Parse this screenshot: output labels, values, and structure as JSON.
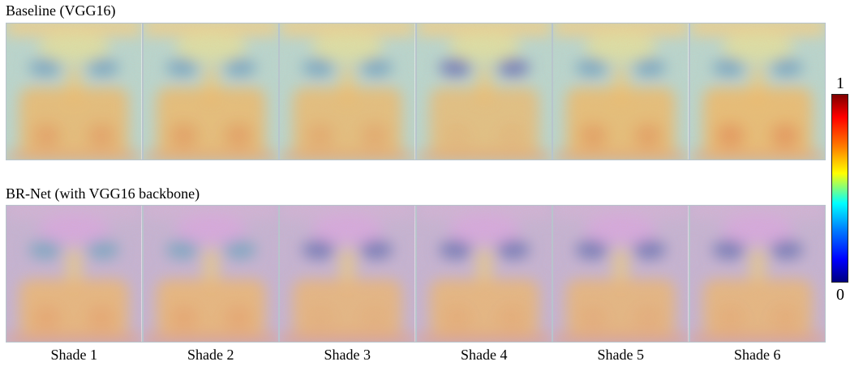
{
  "rows": [
    {
      "title": "Baseline (VGG16)",
      "variant": "baseline"
    },
    {
      "title": "BR-Net (with VGG16 backbone)",
      "variant": "brnet"
    }
  ],
  "columns": [
    "Shade 1",
    "Shade 2",
    "Shade 3",
    "Shade 4",
    "Shade 5",
    "Shade 6"
  ],
  "colorbar": {
    "max_label": "1",
    "min_label": "0",
    "colormap": "jet"
  },
  "heatmap_intensity": {
    "baseline": [
      0.62,
      0.64,
      0.55,
      0.42,
      0.66,
      0.74
    ],
    "brnet": [
      0.52,
      0.52,
      0.4,
      0.46,
      0.45,
      0.46
    ]
  }
}
